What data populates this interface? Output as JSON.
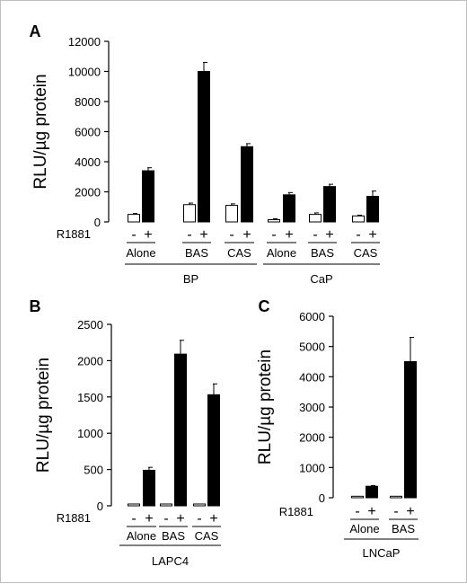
{
  "chart_data": [
    {
      "type": "bar",
      "panel": "A",
      "ylabel": "RLU/µg protein",
      "ylim": [
        0,
        12000
      ],
      "yticks": [
        "0",
        "2000",
        "4000",
        "6000",
        "8000",
        "10000",
        "12000"
      ],
      "treatment_label": "R1881",
      "treatment_signs": [
        "-",
        "+"
      ],
      "groups": [
        {
          "name": "BP",
          "conditions": [
            "Alone",
            "BAS",
            "CAS"
          ],
          "minus": [
            500,
            1150,
            1100
          ],
          "plus": [
            3400,
            10000,
            5000
          ],
          "minus_err": [
            60,
            100,
            100
          ],
          "plus_err": [
            200,
            600,
            200
          ]
        },
        {
          "name": "CaP",
          "conditions": [
            "Alone",
            "BAS",
            "CAS"
          ],
          "minus": [
            150,
            500,
            400
          ],
          "plus": [
            1800,
            2350,
            1700
          ],
          "minus_err": [
            60,
            100,
            50
          ],
          "plus_err": [
            150,
            150,
            350
          ]
        }
      ]
    },
    {
      "type": "bar",
      "panel": "B",
      "ylabel": "RLU/µg protein",
      "ylim": [
        0,
        2500
      ],
      "yticks": [
        "0",
        "500",
        "1000",
        "1500",
        "2000",
        "2500"
      ],
      "treatment_label": "R1881",
      "treatment_signs": [
        "-",
        "+"
      ],
      "groups": [
        {
          "name": "LAPC4",
          "conditions": [
            "Alone",
            "BAS",
            "CAS"
          ],
          "minus": [
            25,
            25,
            25
          ],
          "plus": [
            490,
            2090,
            1530
          ],
          "minus_err": [
            0,
            0,
            0
          ],
          "plus_err": [
            40,
            190,
            150
          ]
        }
      ]
    },
    {
      "type": "bar",
      "panel": "C",
      "ylabel": "RLU/µg protein",
      "ylim": [
        0,
        6000
      ],
      "yticks": [
        "0",
        "1000",
        "2000",
        "3000",
        "4000",
        "5000",
        "6000"
      ],
      "treatment_label": "R1881",
      "treatment_signs": [
        "-",
        "+"
      ],
      "groups": [
        {
          "name": "LNCaP",
          "conditions": [
            "Alone",
            "BAS"
          ],
          "minus": [
            50,
            50
          ],
          "plus": [
            380,
            4500
          ],
          "minus_err": [
            0,
            0
          ],
          "plus_err": [
            20,
            800
          ]
        }
      ]
    }
  ]
}
